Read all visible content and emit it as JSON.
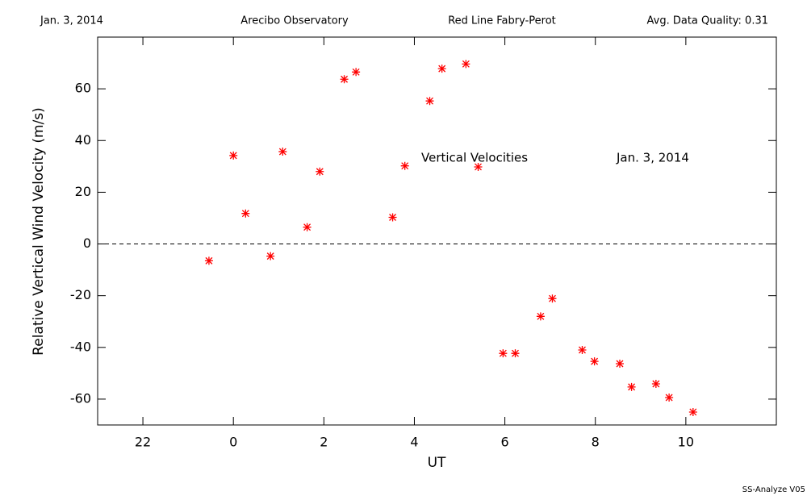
{
  "chart_data": {
    "type": "scatter",
    "header": [
      "Jan. 3, 2014",
      "Arecibo Observatory",
      "Red Line Fabry-Perot",
      "Avg. Data Quality: 0.31"
    ],
    "annotations": [
      "Vertical Velocities",
      "Jan. 3, 2014"
    ],
    "footer": "SS-Analyze V05",
    "xlabel": "UT",
    "ylabel": "Relative Vertical Wind Velocity (m/s)",
    "xlim": [
      -3,
      12
    ],
    "ylim": [
      -70,
      80
    ],
    "xticks": [
      {
        "value": -2,
        "label": "22"
      },
      0,
      2,
      4,
      6,
      8,
      10
    ],
    "yticks": [
      -60,
      -40,
      -20,
      0,
      20,
      40,
      60
    ],
    "hline": 0,
    "color": "#ff0000",
    "x": [
      -0.54,
      0.0,
      0.27,
      0.82,
      1.09,
      1.63,
      1.91,
      2.45,
      2.71,
      3.52,
      3.79,
      4.34,
      4.61,
      5.14,
      5.41,
      5.96,
      6.23,
      6.79,
      7.05,
      7.71,
      7.98,
      8.54,
      8.8,
      9.34,
      9.63,
      10.16
    ],
    "values": [
      -6.5,
      34.2,
      11.8,
      -4.7,
      35.7,
      6.5,
      28.0,
      63.7,
      66.5,
      10.3,
      30.2,
      55.3,
      67.8,
      69.6,
      29.8,
      -42.3,
      -42.3,
      -28.0,
      -21.1,
      -41.0,
      -45.4,
      -46.3,
      -55.3,
      -54.1,
      -59.4,
      -65.0
    ]
  }
}
